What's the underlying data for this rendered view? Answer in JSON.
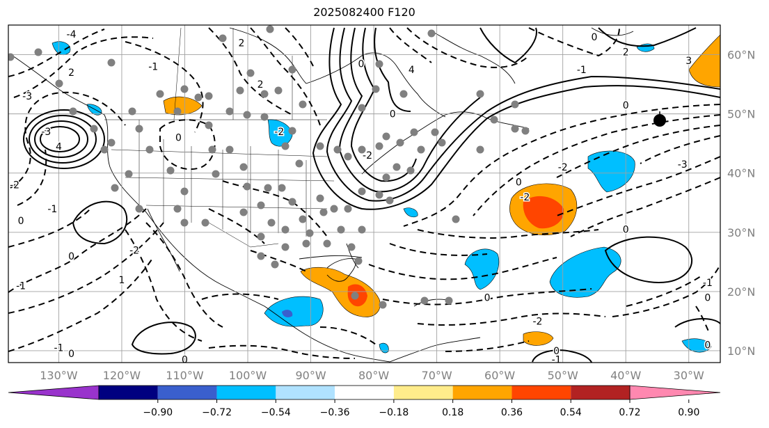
{
  "title": "2025082400 F120",
  "map": {
    "lon_range": [
      -138,
      -25
    ],
    "lat_range": [
      8,
      65
    ],
    "lon_ticks": [
      {
        "value": -130,
        "label": "130°W"
      },
      {
        "value": -120,
        "label": "120°W"
      },
      {
        "value": -110,
        "label": "110°W"
      },
      {
        "value": -100,
        "label": "100°W"
      },
      {
        "value": -90,
        "label": "90°W"
      },
      {
        "value": -80,
        "label": "80°W"
      },
      {
        "value": -70,
        "label": "70°W"
      },
      {
        "value": -60,
        "label": "60°W"
      },
      {
        "value": -50,
        "label": "50°W"
      },
      {
        "value": -40,
        "label": "40°W"
      },
      {
        "value": -30,
        "label": "30°W"
      }
    ],
    "lat_ticks": [
      {
        "value": 60,
        "label": "60°N"
      },
      {
        "value": 50,
        "label": "50°N"
      },
      {
        "value": 40,
        "label": "40°N"
      },
      {
        "value": 30,
        "label": "30°N"
      },
      {
        "value": 20,
        "label": "20°N"
      },
      {
        "value": 10,
        "label": "10°N"
      }
    ],
    "contour_labels": [
      {
        "text": "-4",
        "lon": -128,
        "lat": 63.5
      },
      {
        "text": "-1",
        "lon": -115,
        "lat": 58
      },
      {
        "text": "-3",
        "lon": -135,
        "lat": 53
      },
      {
        "text": "2",
        "lon": -128,
        "lat": 57
      },
      {
        "text": "-3",
        "lon": -132,
        "lat": 47
      },
      {
        "text": "4",
        "lon": -130,
        "lat": 44.5
      },
      {
        "text": "-2",
        "lon": -137,
        "lat": 38
      },
      {
        "text": "0",
        "lon": -136,
        "lat": 32
      },
      {
        "text": "-1",
        "lon": -131,
        "lat": 34
      },
      {
        "text": "0",
        "lon": -111,
        "lat": 46
      },
      {
        "text": "2",
        "lon": -101,
        "lat": 62
      },
      {
        "text": "2",
        "lon": -98,
        "lat": 55
      },
      {
        "text": "-2",
        "lon": -95,
        "lat": 47
      },
      {
        "text": "0",
        "lon": -82,
        "lat": 58.5
      },
      {
        "text": "4",
        "lon": -74,
        "lat": 57.5
      },
      {
        "text": "0",
        "lon": -77,
        "lat": 50
      },
      {
        "text": "-2",
        "lon": -81,
        "lat": 43
      },
      {
        "text": "0",
        "lon": -57,
        "lat": 38.5
      },
      {
        "text": "-2",
        "lon": -56,
        "lat": 36
      },
      {
        "text": "-2",
        "lon": -50,
        "lat": 41
      },
      {
        "text": "0",
        "lon": -40,
        "lat": 51.5
      },
      {
        "text": "-1",
        "lon": -47,
        "lat": 57.5
      },
      {
        "text": "0",
        "lon": -45,
        "lat": 63
      },
      {
        "text": "2",
        "lon": -40,
        "lat": 60.5
      },
      {
        "text": "3",
        "lon": -30,
        "lat": 59
      },
      {
        "text": "-3",
        "lon": -31,
        "lat": 41.5
      },
      {
        "text": "0",
        "lon": -128,
        "lat": 26
      },
      {
        "text": "-1",
        "lon": -136,
        "lat": 21
      },
      {
        "text": "-2",
        "lon": -118,
        "lat": 27
      },
      {
        "text": "1",
        "lon": -120,
        "lat": 22
      },
      {
        "text": "-1",
        "lon": -130,
        "lat": 10.5
      },
      {
        "text": "0",
        "lon": -128,
        "lat": 9.5
      },
      {
        "text": "0",
        "lon": -110,
        "lat": 8.5
      },
      {
        "text": "0",
        "lon": -40,
        "lat": 30.5
      },
      {
        "text": "0",
        "lon": -62,
        "lat": 19
      },
      {
        "text": "-2",
        "lon": -54,
        "lat": 15
      },
      {
        "text": "0",
        "lon": -51,
        "lat": 10
      },
      {
        "text": "-1",
        "lon": -51,
        "lat": 8.5
      },
      {
        "text": "-1",
        "lon": -27,
        "lat": 21.5
      },
      {
        "text": "0",
        "lon": -27,
        "lat": 19
      },
      {
        "text": "0",
        "lon": -27,
        "lat": 11
      }
    ]
  },
  "colorbar": {
    "tick_labels": [
      "−0.90",
      "−0.72",
      "−0.54",
      "−0.36",
      "−0.18",
      "0.18",
      "0.36",
      "0.54",
      "0.72",
      "0.90"
    ],
    "colors": [
      "#9933cc",
      "#000080",
      "#3a5fcd",
      "#00bfff",
      "#b0e2ff",
      "#ffffff",
      "#ffec8b",
      "#ffa500",
      "#ff4500",
      "#b22222",
      "#ff88b0"
    ]
  }
}
